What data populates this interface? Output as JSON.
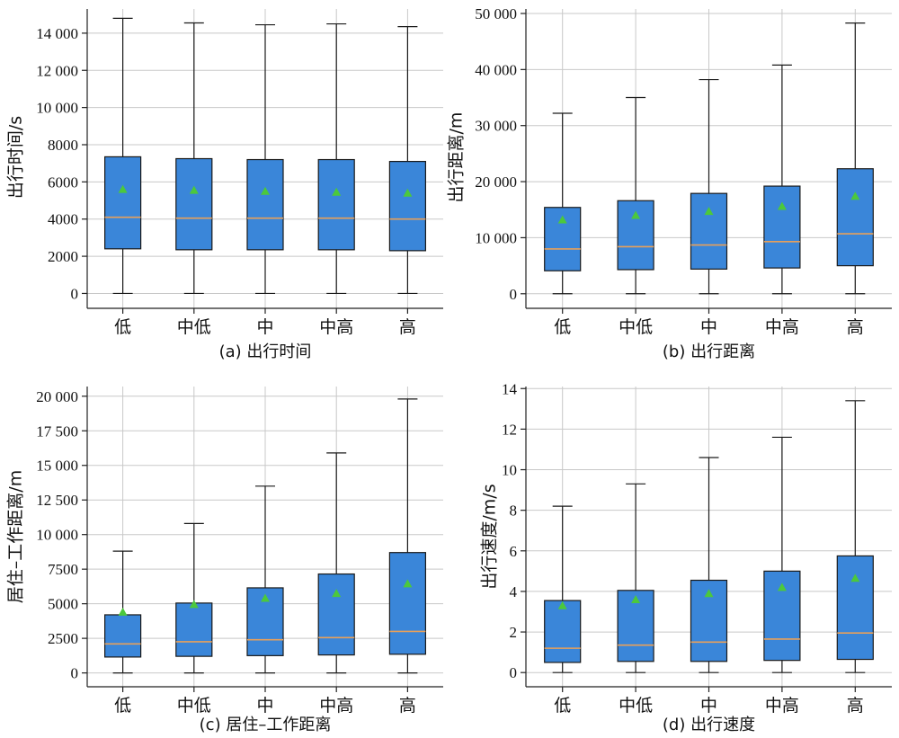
{
  "colors": {
    "box_fill": "#3a86d9",
    "box_edge": "#1a1a1a",
    "median": "#e8a05a",
    "mean_marker": "#4cc83c",
    "grid": "#c8c8c8",
    "whisker": "#1a1a1a"
  },
  "chart_data": [
    {
      "type": "box",
      "caption": "(a) 出行时间",
      "ylabel": "出行时间/s",
      "categories": [
        "低",
        "中低",
        "中",
        "中高",
        "高"
      ],
      "ylim": [
        -800,
        15300
      ],
      "yticks": [
        0,
        2000,
        4000,
        6000,
        8000,
        10000,
        12000,
        14000
      ],
      "ytick_labels": [
        "0",
        "2000",
        "4000",
        "6000",
        "8000",
        "10 000",
        "12 000",
        "14 000"
      ],
      "grid": true,
      "boxes": [
        {
          "whislo": 0,
          "q1": 2400,
          "med": 4100,
          "q3": 7350,
          "whishi": 14800,
          "mean": 5600
        },
        {
          "whislo": 0,
          "q1": 2350,
          "med": 4050,
          "q3": 7250,
          "whishi": 14550,
          "mean": 5550
        },
        {
          "whislo": 0,
          "q1": 2350,
          "med": 4050,
          "q3": 7200,
          "whishi": 14450,
          "mean": 5500
        },
        {
          "whislo": 0,
          "q1": 2350,
          "med": 4050,
          "q3": 7200,
          "whishi": 14500,
          "mean": 5450
        },
        {
          "whislo": 0,
          "q1": 2300,
          "med": 4000,
          "q3": 7100,
          "whishi": 14350,
          "mean": 5400
        }
      ]
    },
    {
      "type": "box",
      "caption": "(b) 出行距离",
      "ylabel": "出行距离/m",
      "categories": [
        "低",
        "中低",
        "中",
        "中高",
        "高"
      ],
      "ylim": [
        -2600,
        50800
      ],
      "yticks": [
        0,
        10000,
        20000,
        30000,
        40000,
        50000
      ],
      "ytick_labels": [
        "0",
        "10 000",
        "20 000",
        "30 000",
        "40 000",
        "50 000"
      ],
      "grid": true,
      "boxes": [
        {
          "whislo": 0,
          "q1": 4100,
          "med": 8000,
          "q3": 15400,
          "whishi": 32200,
          "mean": 13200
        },
        {
          "whislo": 0,
          "q1": 4300,
          "med": 8400,
          "q3": 16600,
          "whishi": 35000,
          "mean": 14000
        },
        {
          "whislo": 0,
          "q1": 4400,
          "med": 8700,
          "q3": 17900,
          "whishi": 38200,
          "mean": 14700
        },
        {
          "whislo": 0,
          "q1": 4600,
          "med": 9300,
          "q3": 19200,
          "whishi": 40800,
          "mean": 15600
        },
        {
          "whislo": 0,
          "q1": 5000,
          "med": 10700,
          "q3": 22300,
          "whishi": 48300,
          "mean": 17400
        }
      ]
    },
    {
      "type": "box",
      "caption": "(c) 居住–工作距离",
      "ylabel": "居住–工作距离/m",
      "categories": [
        "低",
        "中低",
        "中",
        "中高",
        "高"
      ],
      "ylim": [
        -1000,
        20700
      ],
      "yticks": [
        0,
        2500,
        5000,
        7500,
        10000,
        12500,
        15000,
        17500,
        20000
      ],
      "ytick_labels": [
        "0",
        "2500",
        "5000",
        "7500",
        "10 000",
        "12 500",
        "15 000",
        "17 500",
        "20 000"
      ],
      "grid": true,
      "boxes": [
        {
          "whislo": 0,
          "q1": 1150,
          "med": 2100,
          "q3": 4200,
          "whishi": 8800,
          "mean": 4400
        },
        {
          "whislo": 0,
          "q1": 1200,
          "med": 2250,
          "q3": 5050,
          "whishi": 10800,
          "mean": 4950
        },
        {
          "whislo": 0,
          "q1": 1250,
          "med": 2400,
          "q3": 6150,
          "whishi": 13500,
          "mean": 5400
        },
        {
          "whislo": 0,
          "q1": 1300,
          "med": 2550,
          "q3": 7150,
          "whishi": 15900,
          "mean": 5750
        },
        {
          "whislo": 0,
          "q1": 1350,
          "med": 3000,
          "q3": 8700,
          "whishi": 19800,
          "mean": 6450
        }
      ]
    },
    {
      "type": "box",
      "caption": "(d) 出行速度",
      "ylabel": "出行速度/m/s",
      "categories": [
        "低",
        "中低",
        "中",
        "中高",
        "高"
      ],
      "ylim": [
        -0.7,
        14.1
      ],
      "yticks": [
        0,
        2,
        4,
        6,
        8,
        10,
        12,
        14
      ],
      "ytick_labels": [
        "0",
        "2",
        "4",
        "6",
        "8",
        "10",
        "12",
        "14"
      ],
      "grid": true,
      "boxes": [
        {
          "whislo": 0,
          "q1": 0.5,
          "med": 1.2,
          "q3": 3.55,
          "whishi": 8.2,
          "mean": 3.3
        },
        {
          "whislo": 0,
          "q1": 0.55,
          "med": 1.35,
          "q3": 4.05,
          "whishi": 9.3,
          "mean": 3.6
        },
        {
          "whislo": 0,
          "q1": 0.55,
          "med": 1.5,
          "q3": 4.55,
          "whishi": 10.6,
          "mean": 3.9
        },
        {
          "whislo": 0,
          "q1": 0.6,
          "med": 1.65,
          "q3": 5.0,
          "whishi": 11.6,
          "mean": 4.2
        },
        {
          "whislo": 0,
          "q1": 0.65,
          "med": 1.95,
          "q3": 5.75,
          "whishi": 13.4,
          "mean": 4.65
        }
      ]
    }
  ]
}
